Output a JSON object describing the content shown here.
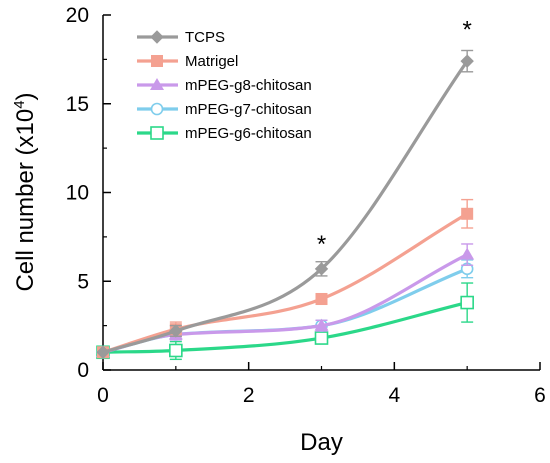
{
  "chart_data": {
    "type": "line",
    "xlabel": "Day",
    "ylabel": "Cell number (x10",
    "ylabel_sup": "4",
    "ylabel_close": ")",
    "xlim": [
      0,
      6
    ],
    "ylim": [
      0,
      20
    ],
    "x_ticks": [
      "0",
      "2",
      "4",
      "6"
    ],
    "y_ticks": [
      "0",
      "5",
      "10",
      "15",
      "20"
    ],
    "legend_position": "top-left",
    "grid": false,
    "series": [
      {
        "name": "TCPS",
        "color": "#9a9a9a",
        "marker": "diamond-filled",
        "x": [
          0,
          1,
          3,
          5
        ],
        "y": [
          1.0,
          2.2,
          5.7,
          17.4
        ],
        "err": [
          0.0,
          0.3,
          0.4,
          0.6
        ]
      },
      {
        "name": "Matrigel",
        "color": "#f4a191",
        "marker": "square-filled",
        "x": [
          0,
          1,
          3,
          5
        ],
        "y": [
          1.0,
          2.3,
          4.0,
          8.8
        ],
        "err": [
          0.0,
          0.4,
          0.3,
          0.8
        ]
      },
      {
        "name": "mPEG-g8-chitosan",
        "color": "#c999ea",
        "marker": "triangle-filled",
        "x": [
          0,
          1,
          3,
          5
        ],
        "y": [
          1.0,
          2.0,
          2.5,
          6.5
        ],
        "err": [
          0.0,
          0.3,
          0.3,
          0.6
        ]
      },
      {
        "name": "mPEG-g7-chitosan",
        "color": "#7fcdec",
        "marker": "circle-open",
        "x": [
          0,
          1,
          3,
          5
        ],
        "y": [
          1.0,
          2.0,
          2.5,
          5.7
        ],
        "err": [
          0.0,
          0.3,
          0.3,
          0.5
        ]
      },
      {
        "name": "mPEG-g6-chitosan",
        "color": "#2bd889",
        "marker": "square-open",
        "x": [
          0,
          1,
          3,
          5
        ],
        "y": [
          1.0,
          1.1,
          1.8,
          3.8
        ],
        "err": [
          0.0,
          0.5,
          0.3,
          1.1
        ]
      }
    ],
    "annotations": [
      {
        "text": "*",
        "x": 3,
        "y": 7.2
      },
      {
        "text": "*",
        "x": 5,
        "y": 19.3
      }
    ]
  }
}
